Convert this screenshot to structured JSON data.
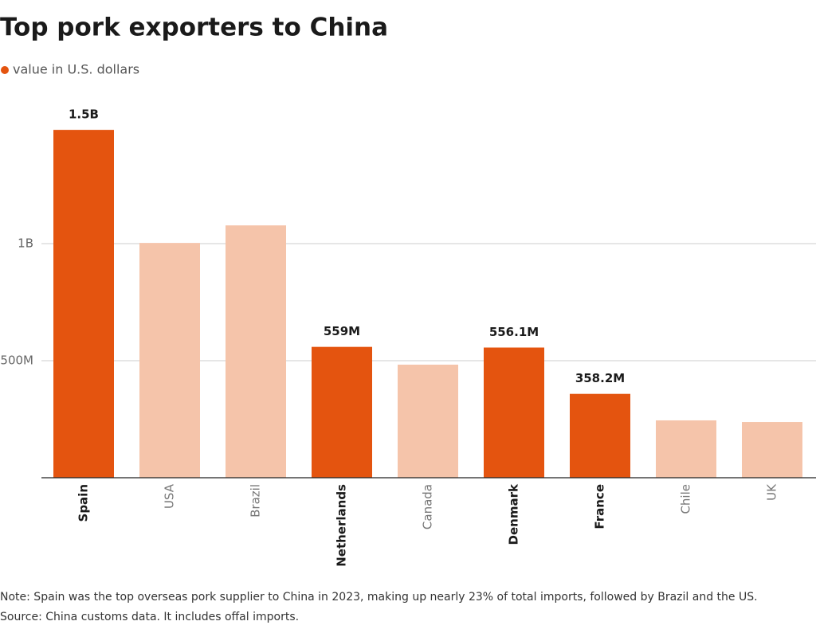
{
  "chart_data": {
    "type": "bar",
    "title": "Top pork exporters to China",
    "legend": "value in U.S. dollars",
    "legend_color": "#e4540f",
    "categories": [
      "Spain",
      "USA",
      "Brazil",
      "Netherlands",
      "Canada",
      "Denmark",
      "France",
      "Chile",
      "UK"
    ],
    "values": [
      1486000000,
      1003000000,
      1078000000,
      559000000,
      483000000,
      556100000,
      358200000,
      245000000,
      238000000
    ],
    "value_labels": [
      "1.5B",
      null,
      null,
      "559M",
      null,
      "556.1M",
      "358.2M",
      null,
      null
    ],
    "colors": [
      "#e4540f",
      "#f5c4aa",
      "#f5c4aa",
      "#e4540f",
      "#f5c4aa",
      "#e4540f",
      "#e4540f",
      "#f5c4aa",
      "#f5c4aa"
    ],
    "ylim": [
      0,
      1600000000
    ],
    "yticks": [
      {
        "value": 500000000,
        "label": "500M"
      },
      {
        "value": 1000000000,
        "label": "1B"
      }
    ],
    "grid": true,
    "note": "Note: Spain was the top overseas pork supplier to China in 2023, making up nearly 23% of total imports, followed by Brazil and the US.",
    "source": "Source: China customs data. It includes offal imports."
  }
}
